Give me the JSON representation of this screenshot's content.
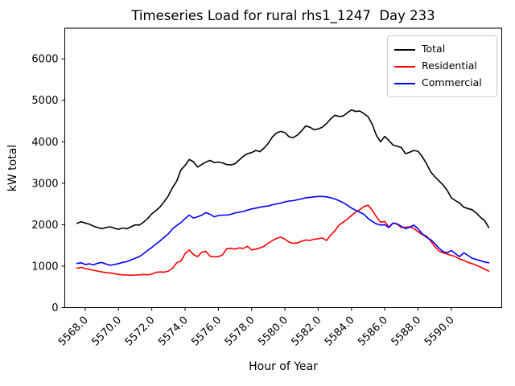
{
  "title": "Timeseries Load for rural rhs1_1247  Day 233",
  "colors": {
    "total": "#000000",
    "residential": "#ff0000",
    "commercial": "#0000ff",
    "spine": "#000000",
    "legend_border": "#cccccc",
    "background": "#ffffff"
  },
  "x_tick_labels": [
    "5568.0",
    "5570.0",
    "5572.0",
    "5574.0",
    "5576.0",
    "5578.0",
    "5580.0",
    "5582.0",
    "5584.0",
    "5586.0",
    "5588.0",
    "5590.0"
  ],
  "y_tick_labels": [
    "0",
    "1000",
    "2000",
    "3000",
    "4000",
    "5000",
    "6000"
  ],
  "chart_data": {
    "type": "line",
    "title": "Timeseries Load for rural rhs1_1247  Day 233",
    "xlabel": "Hour of Year",
    "ylabel": "kW total",
    "grid": false,
    "legend_position": "upper right",
    "xlim": [
      5566.77,
      5593.03
    ],
    "ylim": [
      0,
      6740
    ],
    "x_ticks": [
      5568,
      5570,
      5572,
      5574,
      5576,
      5578,
      5580,
      5582,
      5584,
      5586,
      5588,
      5590
    ],
    "y_ticks": [
      0,
      1000,
      2000,
      3000,
      4000,
      5000,
      6000
    ],
    "x": [
      5567.5,
      5567.75,
      5568.0,
      5568.25,
      5568.5,
      5568.75,
      5569.0,
      5569.25,
      5569.5,
      5569.75,
      5570.0,
      5570.25,
      5570.5,
      5570.75,
      5571.0,
      5571.25,
      5571.5,
      5571.75,
      5572.0,
      5572.25,
      5572.5,
      5572.75,
      5573.0,
      5573.25,
      5573.5,
      5573.75,
      5574.0,
      5574.25,
      5574.5,
      5574.75,
      5575.0,
      5575.25,
      5575.5,
      5575.75,
      5576.0,
      5576.25,
      5576.5,
      5576.75,
      5577.0,
      5577.25,
      5577.5,
      5577.75,
      5578.0,
      5578.25,
      5578.5,
      5578.75,
      5579.0,
      5579.25,
      5579.5,
      5579.75,
      5580.0,
      5580.25,
      5580.5,
      5580.75,
      5581.0,
      5581.25,
      5581.5,
      5581.75,
      5582.0,
      5582.25,
      5582.5,
      5582.75,
      5583.0,
      5583.25,
      5583.5,
      5583.75,
      5584.0,
      5584.25,
      5584.5,
      5584.75,
      5585.0,
      5585.25,
      5585.5,
      5585.75,
      5586.0,
      5586.25,
      5586.5,
      5586.75,
      5587.0,
      5587.25,
      5587.5,
      5587.75,
      5588.0,
      5588.25,
      5588.5,
      5588.75,
      5589.0,
      5589.25,
      5589.5,
      5589.75,
      5590.0,
      5590.25,
      5590.5,
      5590.75,
      5591.0,
      5591.25,
      5591.5,
      5591.75,
      5592.0,
      5592.25
    ],
    "series": [
      {
        "name": "Total",
        "color": "#000000",
        "values": [
          2030,
          2070,
          2040,
          2010,
          1965,
          1930,
          1905,
          1930,
          1950,
          1915,
          1890,
          1920,
          1900,
          1950,
          1995,
          1990,
          2060,
          2150,
          2260,
          2340,
          2430,
          2560,
          2700,
          2900,
          3050,
          3320,
          3430,
          3570,
          3520,
          3390,
          3450,
          3510,
          3550,
          3500,
          3510,
          3490,
          3450,
          3440,
          3470,
          3560,
          3650,
          3710,
          3740,
          3790,
          3760,
          3850,
          3960,
          4120,
          4210,
          4250,
          4220,
          4120,
          4100,
          4160,
          4260,
          4380,
          4350,
          4290,
          4310,
          4350,
          4440,
          4550,
          4640,
          4610,
          4620,
          4700,
          4770,
          4730,
          4740,
          4680,
          4600,
          4420,
          4150,
          4000,
          4130,
          4030,
          3920,
          3890,
          3860,
          3710,
          3750,
          3790,
          3770,
          3640,
          3480,
          3280,
          3160,
          3060,
          2960,
          2830,
          2650,
          2580,
          2520,
          2420,
          2390,
          2360,
          2280,
          2180,
          2100,
          1930
        ]
      },
      {
        "name": "Residential",
        "color": "#ff0000",
        "values": [
          950,
          970,
          940,
          920,
          900,
          880,
          860,
          845,
          835,
          820,
          800,
          790,
          785,
          780,
          785,
          790,
          800,
          790,
          810,
          850,
          860,
          855,
          880,
          950,
          1080,
          1120,
          1300,
          1390,
          1280,
          1230,
          1330,
          1360,
          1240,
          1225,
          1230,
          1270,
          1420,
          1430,
          1410,
          1440,
          1430,
          1480,
          1390,
          1410,
          1440,
          1480,
          1550,
          1620,
          1670,
          1700,
          1650,
          1580,
          1550,
          1560,
          1600,
          1630,
          1620,
          1650,
          1660,
          1680,
          1620,
          1750,
          1850,
          1990,
          2060,
          2130,
          2220,
          2300,
          2360,
          2440,
          2470,
          2350,
          2190,
          2060,
          2080,
          1940,
          2040,
          2010,
          1930,
          1940,
          1950,
          1910,
          1830,
          1760,
          1730,
          1610,
          1480,
          1370,
          1320,
          1290,
          1260,
          1230,
          1170,
          1140,
          1090,
          1060,
          1020,
          980,
          930,
          880
        ]
      },
      {
        "name": "Commercial",
        "color": "#0000ff",
        "values": [
          1065,
          1080,
          1040,
          1055,
          1030,
          1070,
          1090,
          1050,
          1020,
          1040,
          1060,
          1090,
          1110,
          1150,
          1190,
          1230,
          1300,
          1380,
          1450,
          1530,
          1610,
          1700,
          1780,
          1900,
          1980,
          2050,
          2150,
          2230,
          2160,
          2190,
          2230,
          2290,
          2250,
          2190,
          2220,
          2230,
          2230,
          2250,
          2280,
          2300,
          2320,
          2350,
          2380,
          2400,
          2420,
          2440,
          2450,
          2480,
          2500,
          2520,
          2550,
          2570,
          2580,
          2600,
          2620,
          2650,
          2660,
          2670,
          2680,
          2680,
          2670,
          2650,
          2620,
          2580,
          2530,
          2470,
          2400,
          2350,
          2300,
          2250,
          2150,
          2080,
          2020,
          1990,
          2000,
          1930,
          2040,
          2020,
          1960,
          1900,
          1940,
          1990,
          1900,
          1780,
          1700,
          1640,
          1550,
          1440,
          1350,
          1320,
          1380,
          1300,
          1230,
          1320,
          1260,
          1190,
          1160,
          1130,
          1100,
          1080
        ]
      }
    ]
  }
}
